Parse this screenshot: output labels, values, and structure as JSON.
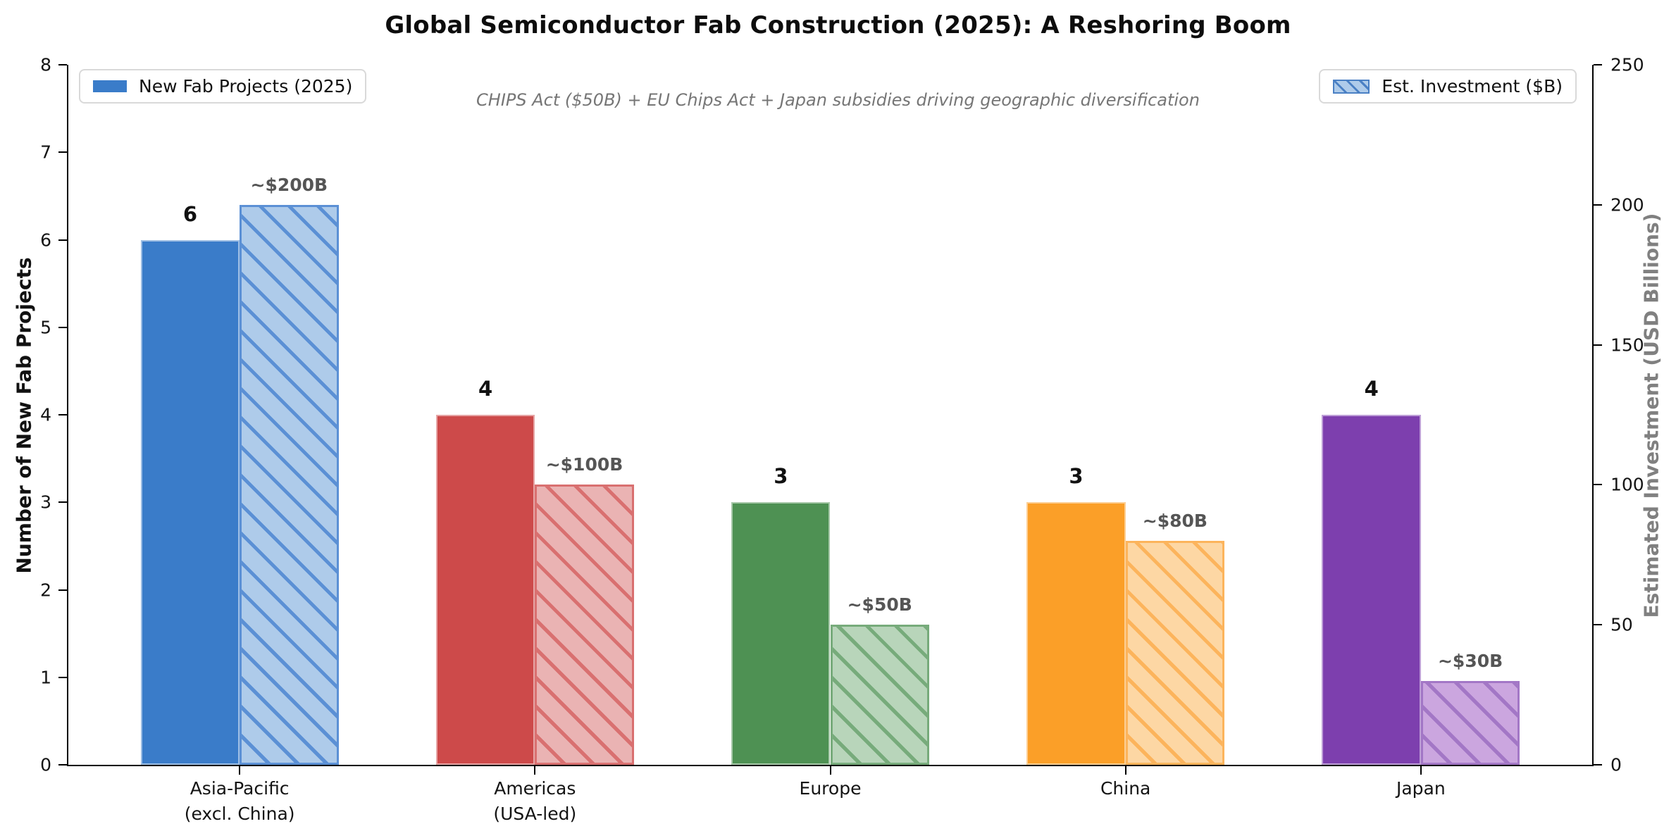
{
  "title": "Global Semiconductor Fab Construction (2025): A Reshoring Boom",
  "subtitle": "CHIPS Act ($50B) + EU Chips Act + Japan subsidies driving geographic diversification",
  "legend_left": {
    "label": "New Fab Projects (2025)"
  },
  "legend_right": {
    "label": "Est. Investment ($B)"
  },
  "chart_data": {
    "type": "bar",
    "title": "Global Semiconductor Fab Construction (2025): A Reshoring Boom",
    "subtitle": "CHIPS Act ($50B) + EU Chips Act + Japan subsidies driving geographic diversification",
    "categories": [
      "Asia-Pacific\n(excl. China)",
      "Americas\n(USA-led)",
      "Europe",
      "China",
      "Japan"
    ],
    "series": [
      {
        "name": "New Fab Projects (2025)",
        "axis": "left",
        "values": [
          6,
          4,
          3,
          3,
          4
        ],
        "labels": [
          "6",
          "4",
          "3",
          "3",
          "4"
        ]
      },
      {
        "name": "Est. Investment ($B)",
        "axis": "right",
        "values": [
          200,
          100,
          50,
          80,
          30
        ],
        "labels": [
          "~$200B",
          "~$100B",
          "~$50B",
          "~$80B",
          "~$30B"
        ]
      }
    ],
    "left_axis": {
      "label": "Number of New Fab Projects",
      "ticks": [
        0,
        1,
        2,
        3,
        4,
        5,
        6,
        7,
        8
      ],
      "max": 8
    },
    "right_axis": {
      "label": "Estimated Investment (USD Billions)",
      "ticks": [
        0,
        50,
        100,
        150,
        200,
        250
      ],
      "max": 250
    },
    "colors": [
      {
        "solid": "#3a7cc9",
        "fill": "#aecbea",
        "edge": "#5b90d5"
      },
      {
        "solid": "#cd4a4a",
        "fill": "#eab3b3",
        "edge": "#d97070"
      },
      {
        "solid": "#4e9153",
        "fill": "#b8d5ba",
        "edge": "#77ab7b"
      },
      {
        "solid": "#fb9f28",
        "fill": "#fdd7a4",
        "edge": "#fcb45c"
      },
      {
        "solid": "#7d3fae",
        "fill": "#cba6df",
        "edge": "#a377c6"
      }
    ],
    "count_label_color": "#111111",
    "invest_label_color": "#555555",
    "grid": false,
    "legend_positions": [
      "upper left",
      "upper right"
    ],
    "xlim_units": [
      -0.58,
      4.58
    ],
    "bar_width_units": 0.335
  }
}
